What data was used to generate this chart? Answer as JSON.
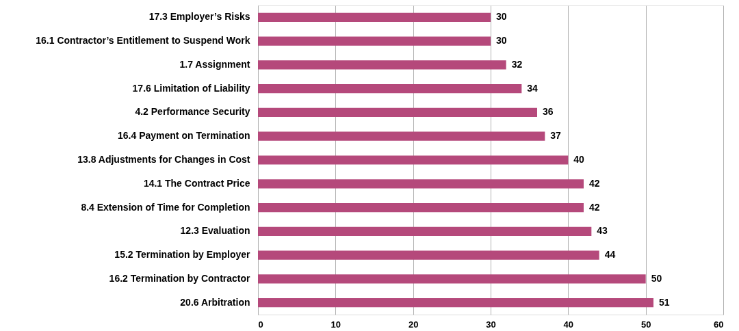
{
  "chart_data": {
    "type": "bar",
    "orientation": "horizontal",
    "categories": [
      "17.3 Employer’s  Risks",
      "16.1 Contractor’s Entitlement to Suspend Work",
      "1.7 Assignment",
      "17.6 Limitation of Liability",
      "4.2 Performance Security",
      "16.4 Payment on Termination",
      "13.8 Adjustments for Changes in Cost",
      "14.1 The Contract Price",
      "8.4 Extension of Time for Completion",
      "12.3 Evaluation",
      "15.2 Termination by Employer",
      "16.2 Termination by Contractor",
      "20.6 Arbitration"
    ],
    "values": [
      30,
      30,
      32,
      34,
      36,
      37,
      40,
      42,
      42,
      43,
      44,
      50,
      51
    ],
    "color": "#b5497b",
    "xlim": [
      0,
      60
    ],
    "xticks": [
      0,
      10,
      20,
      30,
      40,
      50,
      60
    ],
    "grid": "x",
    "data_labels": true
  }
}
